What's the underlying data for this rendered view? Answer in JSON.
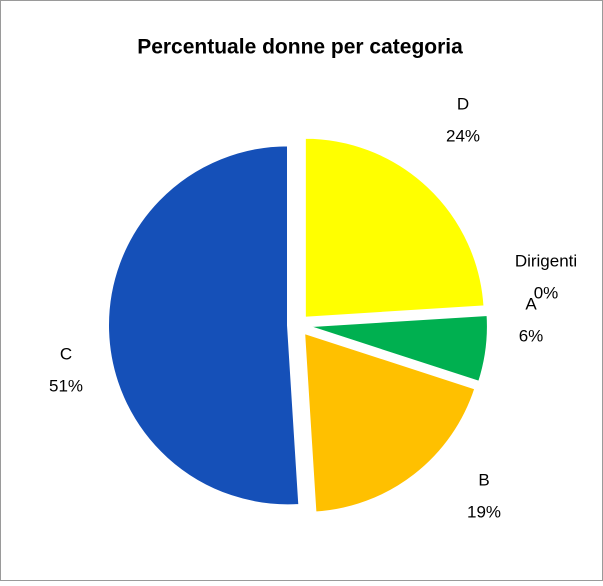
{
  "chart_data": {
    "type": "pie",
    "title": "Percentuale donne per categoria",
    "categories": [
      "D",
      "Dirigenti",
      "A",
      "B",
      "C"
    ],
    "values": [
      24,
      0,
      6,
      19,
      51
    ],
    "value_labels": [
      "24%",
      "0%",
      "6%",
      "19%",
      "51%"
    ],
    "colors": [
      "#ffff00",
      "#4472c4",
      "#00b050",
      "#ffc000",
      "#1550b8"
    ]
  }
}
